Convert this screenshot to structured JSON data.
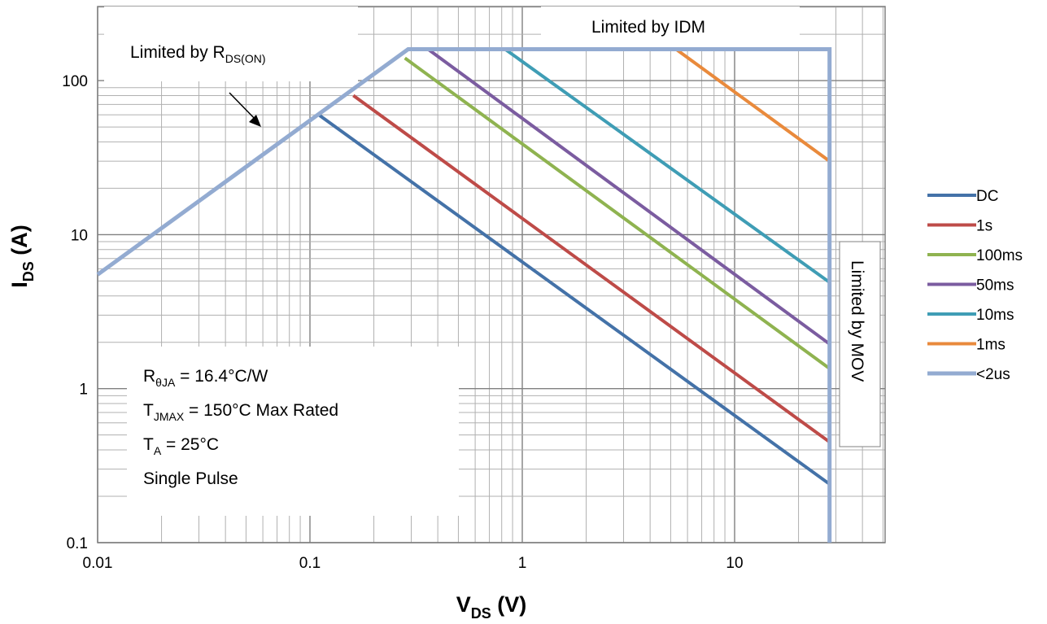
{
  "chart_data": {
    "type": "line",
    "x_scale": "log",
    "y_scale": "log",
    "xlim": [
      0.01,
      60
    ],
    "ylim": [
      0.1,
      300
    ],
    "grid": true,
    "legend_position": "right",
    "x_ticks": [
      "0.01",
      "0.1",
      "1",
      "10"
    ],
    "y_ticks": [
      "0.1",
      "1",
      "10",
      "100"
    ],
    "xlabel": {
      "main": "V",
      "sub": "DS",
      "rest": " (V)"
    },
    "ylabel": {
      "main": "I",
      "sub": "DS",
      "rest": " (A)"
    },
    "series": [
      {
        "name": "DC",
        "color": "#4472a8",
        "x": [
          0.11,
          28
        ],
        "y": [
          60,
          0.24
        ]
      },
      {
        "name": "1s",
        "color": "#be4b48",
        "x": [
          0.16,
          28
        ],
        "y": [
          80,
          0.45
        ]
      },
      {
        "name": "100ms",
        "color": "#8fb350",
        "x": [
          0.28,
          28
        ],
        "y": [
          140,
          1.35
        ]
      },
      {
        "name": "50ms",
        "color": "#7b5ca0",
        "x": [
          0.36,
          28
        ],
        "y": [
          160,
          1.95
        ]
      },
      {
        "name": "10ms",
        "color": "#3f9db5",
        "x": [
          0.83,
          28
        ],
        "y": [
          160,
          4.9
        ]
      },
      {
        "name": "1ms",
        "color": "#e98a3c",
        "x": [
          5.3,
          28
        ],
        "y": [
          160,
          30
        ]
      },
      {
        "name": "<2us",
        "color": "#93abd1",
        "x": [
          0.01,
          0.29,
          28,
          28
        ],
        "y": [
          5.5,
          160,
          160,
          0.1
        ]
      }
    ],
    "annotations": {
      "rds_on": {
        "main": "Limited by R",
        "sub": "DS(ON)"
      },
      "idm": "Limited by IDM",
      "mov": "Limited by MOV",
      "conditions": [
        {
          "main": "R",
          "sub": "θJA",
          "rest": " = 16.4°C/W"
        },
        {
          "main": "T",
          "sub": "JMAX",
          "rest": " = 150°C Max Rated"
        },
        {
          "main": "T",
          "sub": "A",
          "rest": " = 25°C"
        },
        {
          "main": "Single Pulse",
          "sub": "",
          "rest": ""
        }
      ]
    }
  }
}
